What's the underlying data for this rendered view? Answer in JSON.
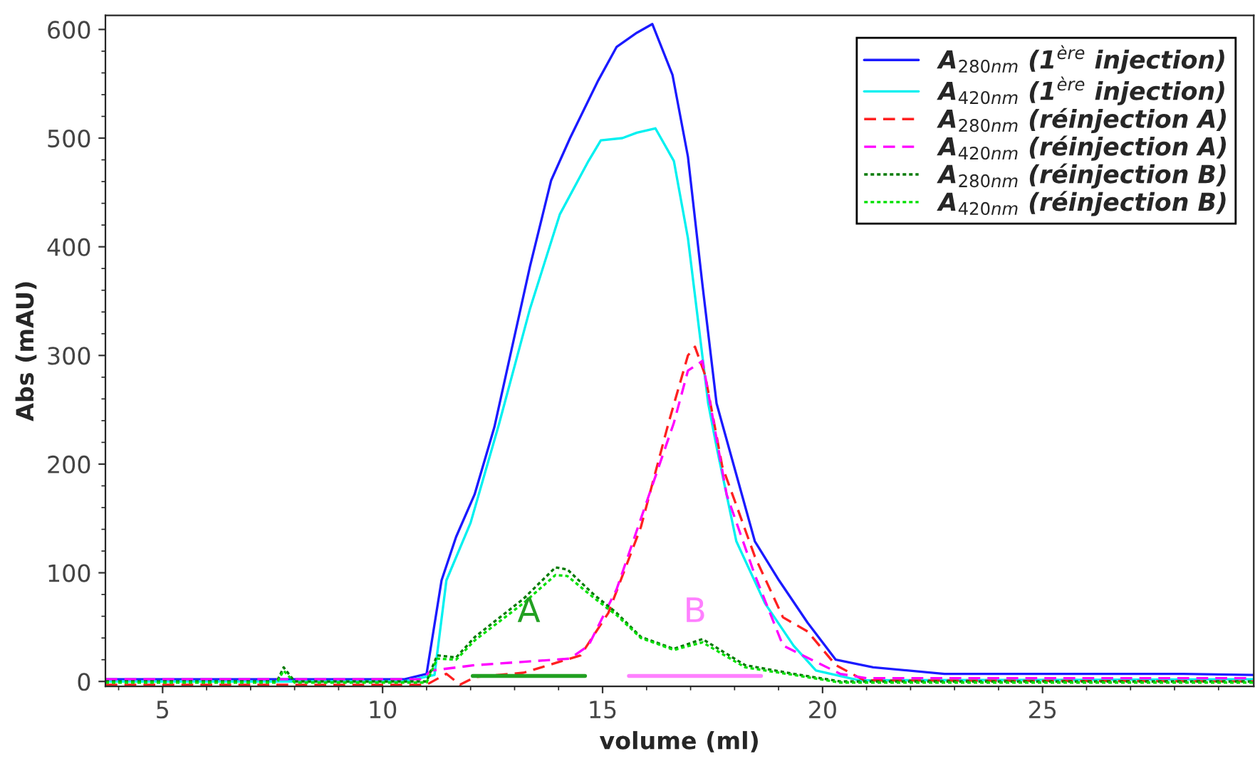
{
  "chart_data": {
    "type": "line",
    "xlabel": "volume (ml)",
    "ylabel": "Abs (mAU)",
    "xlim": [
      3.7,
      29.8
    ],
    "ylim": [
      -4.5,
      613
    ],
    "xticks": [
      5,
      10,
      15,
      20,
      25
    ],
    "yticks": [
      0,
      100,
      200,
      300,
      400,
      500,
      600
    ],
    "grid": false,
    "legend": "top right",
    "series": [
      {
        "name": "A$_{280nm}$ (1$^{ère}$ injection)",
        "color": "#1a1aff",
        "line_style": "solid",
        "x": [
          3.7,
          10.5,
          11.0,
          11.34,
          11.67,
          12.09,
          12.41,
          12.54,
          13.35,
          13.83,
          14.26,
          14.9,
          15.32,
          15.78,
          16.13,
          16.59,
          16.94,
          17.27,
          17.59,
          18.46,
          19.01,
          19.66,
          20.3,
          21.15,
          22.77,
          24.9,
          28.2,
          29.8
        ],
        "values": [
          2,
          2,
          7,
          93,
          133,
          172,
          216,
          234,
          382,
          461,
          500,
          553,
          584,
          597,
          605,
          558,
          483,
          365,
          256,
          129,
          93,
          54,
          20,
          13,
          7,
          7,
          7,
          6
        ]
      },
      {
        "name": "A$_{420nm}$ (1$^{ère}$ injection)",
        "color": "#00f0f0",
        "line_style": "solid",
        "x": [
          3.7,
          10.5,
          11.18,
          11.45,
          12.0,
          12.64,
          13.35,
          14.03,
          14.68,
          14.96,
          15.45,
          15.78,
          16.2,
          16.62,
          16.94,
          17.4,
          17.59,
          18.04,
          18.69,
          19.34,
          19.85,
          20.83,
          29.8
        ],
        "values": [
          0,
          0,
          6,
          93,
          146,
          236,
          343,
          430,
          479,
          498,
          500,
          505,
          509,
          479,
          408,
          256,
          216,
          129,
          72,
          33,
          10,
          1,
          2
        ]
      },
      {
        "name": "A$_{280nm}$ (réinjection A)",
        "color": "#ff2020",
        "line_style": "dashed",
        "x": [
          3.7,
          11.0,
          11.45,
          11.76,
          12.1,
          13.2,
          14.5,
          15.13,
          15.87,
          16.5,
          16.94,
          17.1,
          17.33,
          17.72,
          18.46,
          19.1,
          19.66,
          20.3,
          20.95,
          29.8
        ],
        "values": [
          -3,
          -3,
          7,
          -3,
          4,
          8,
          24,
          63,
          142,
          238,
          300,
          308,
          282,
          198,
          115,
          59,
          46,
          15,
          1,
          0
        ]
      },
      {
        "name": "A$_{420nm}$ (réinjection A)",
        "color": "#ff00ff",
        "line_style": "dashed",
        "x": [
          3.7,
          10.9,
          11.1,
          12.1,
          14.26,
          14.68,
          15.32,
          16.62,
          16.94,
          17.27,
          17.82,
          18.46,
          19.1,
          19.75,
          20.4,
          21.0,
          29.8
        ],
        "values": [
          2,
          2,
          10,
          15,
          21,
          33,
          85,
          238,
          286,
          295,
          172,
          98,
          33,
          20,
          7,
          3,
          3
        ]
      },
      {
        "name": "A$_{280nm}$ (réinjection B)",
        "color": "#007a00",
        "line_style": "dotted",
        "x": [
          3.7,
          7.6,
          7.75,
          8.0,
          11.0,
          11.24,
          11.67,
          12.1,
          13.2,
          13.93,
          14.2,
          14.8,
          15.32,
          15.87,
          16.62,
          17.27,
          18.24,
          19.34,
          20.4,
          29.8
        ],
        "values": [
          0,
          0,
          13,
          0,
          0,
          24,
          22,
          41,
          76,
          105,
          103,
          80,
          63,
          41,
          30,
          39,
          15,
          7,
          0,
          0
        ]
      },
      {
        "name": "A$_{420nm}$ (réinjection B)",
        "color": "#00e000",
        "line_style": "dotted",
        "x": [
          3.7,
          7.6,
          7.75,
          8.0,
          11.0,
          11.24,
          11.67,
          12.1,
          13.2,
          13.93,
          14.2,
          14.8,
          15.32,
          15.87,
          16.62,
          17.27,
          18.24,
          19.34,
          20.4,
          29.8
        ],
        "values": [
          -1,
          -1,
          10,
          -1,
          -1,
          21,
          20,
          38,
          72,
          98,
          97,
          77,
          61,
          40,
          29,
          36,
          13,
          6,
          -1,
          -1
        ]
      },
      {
        "color": "#22a022",
        "line_style": "solid",
        "x": [
          12.05,
          14.6
        ],
        "values": [
          5,
          5
        ]
      },
      {
        "color": "#ff80ff",
        "line_style": "solid",
        "x": [
          15.6,
          18.6
        ],
        "values": [
          5,
          5
        ]
      }
    ],
    "annotations": [
      "A",
      "B"
    ]
  }
}
